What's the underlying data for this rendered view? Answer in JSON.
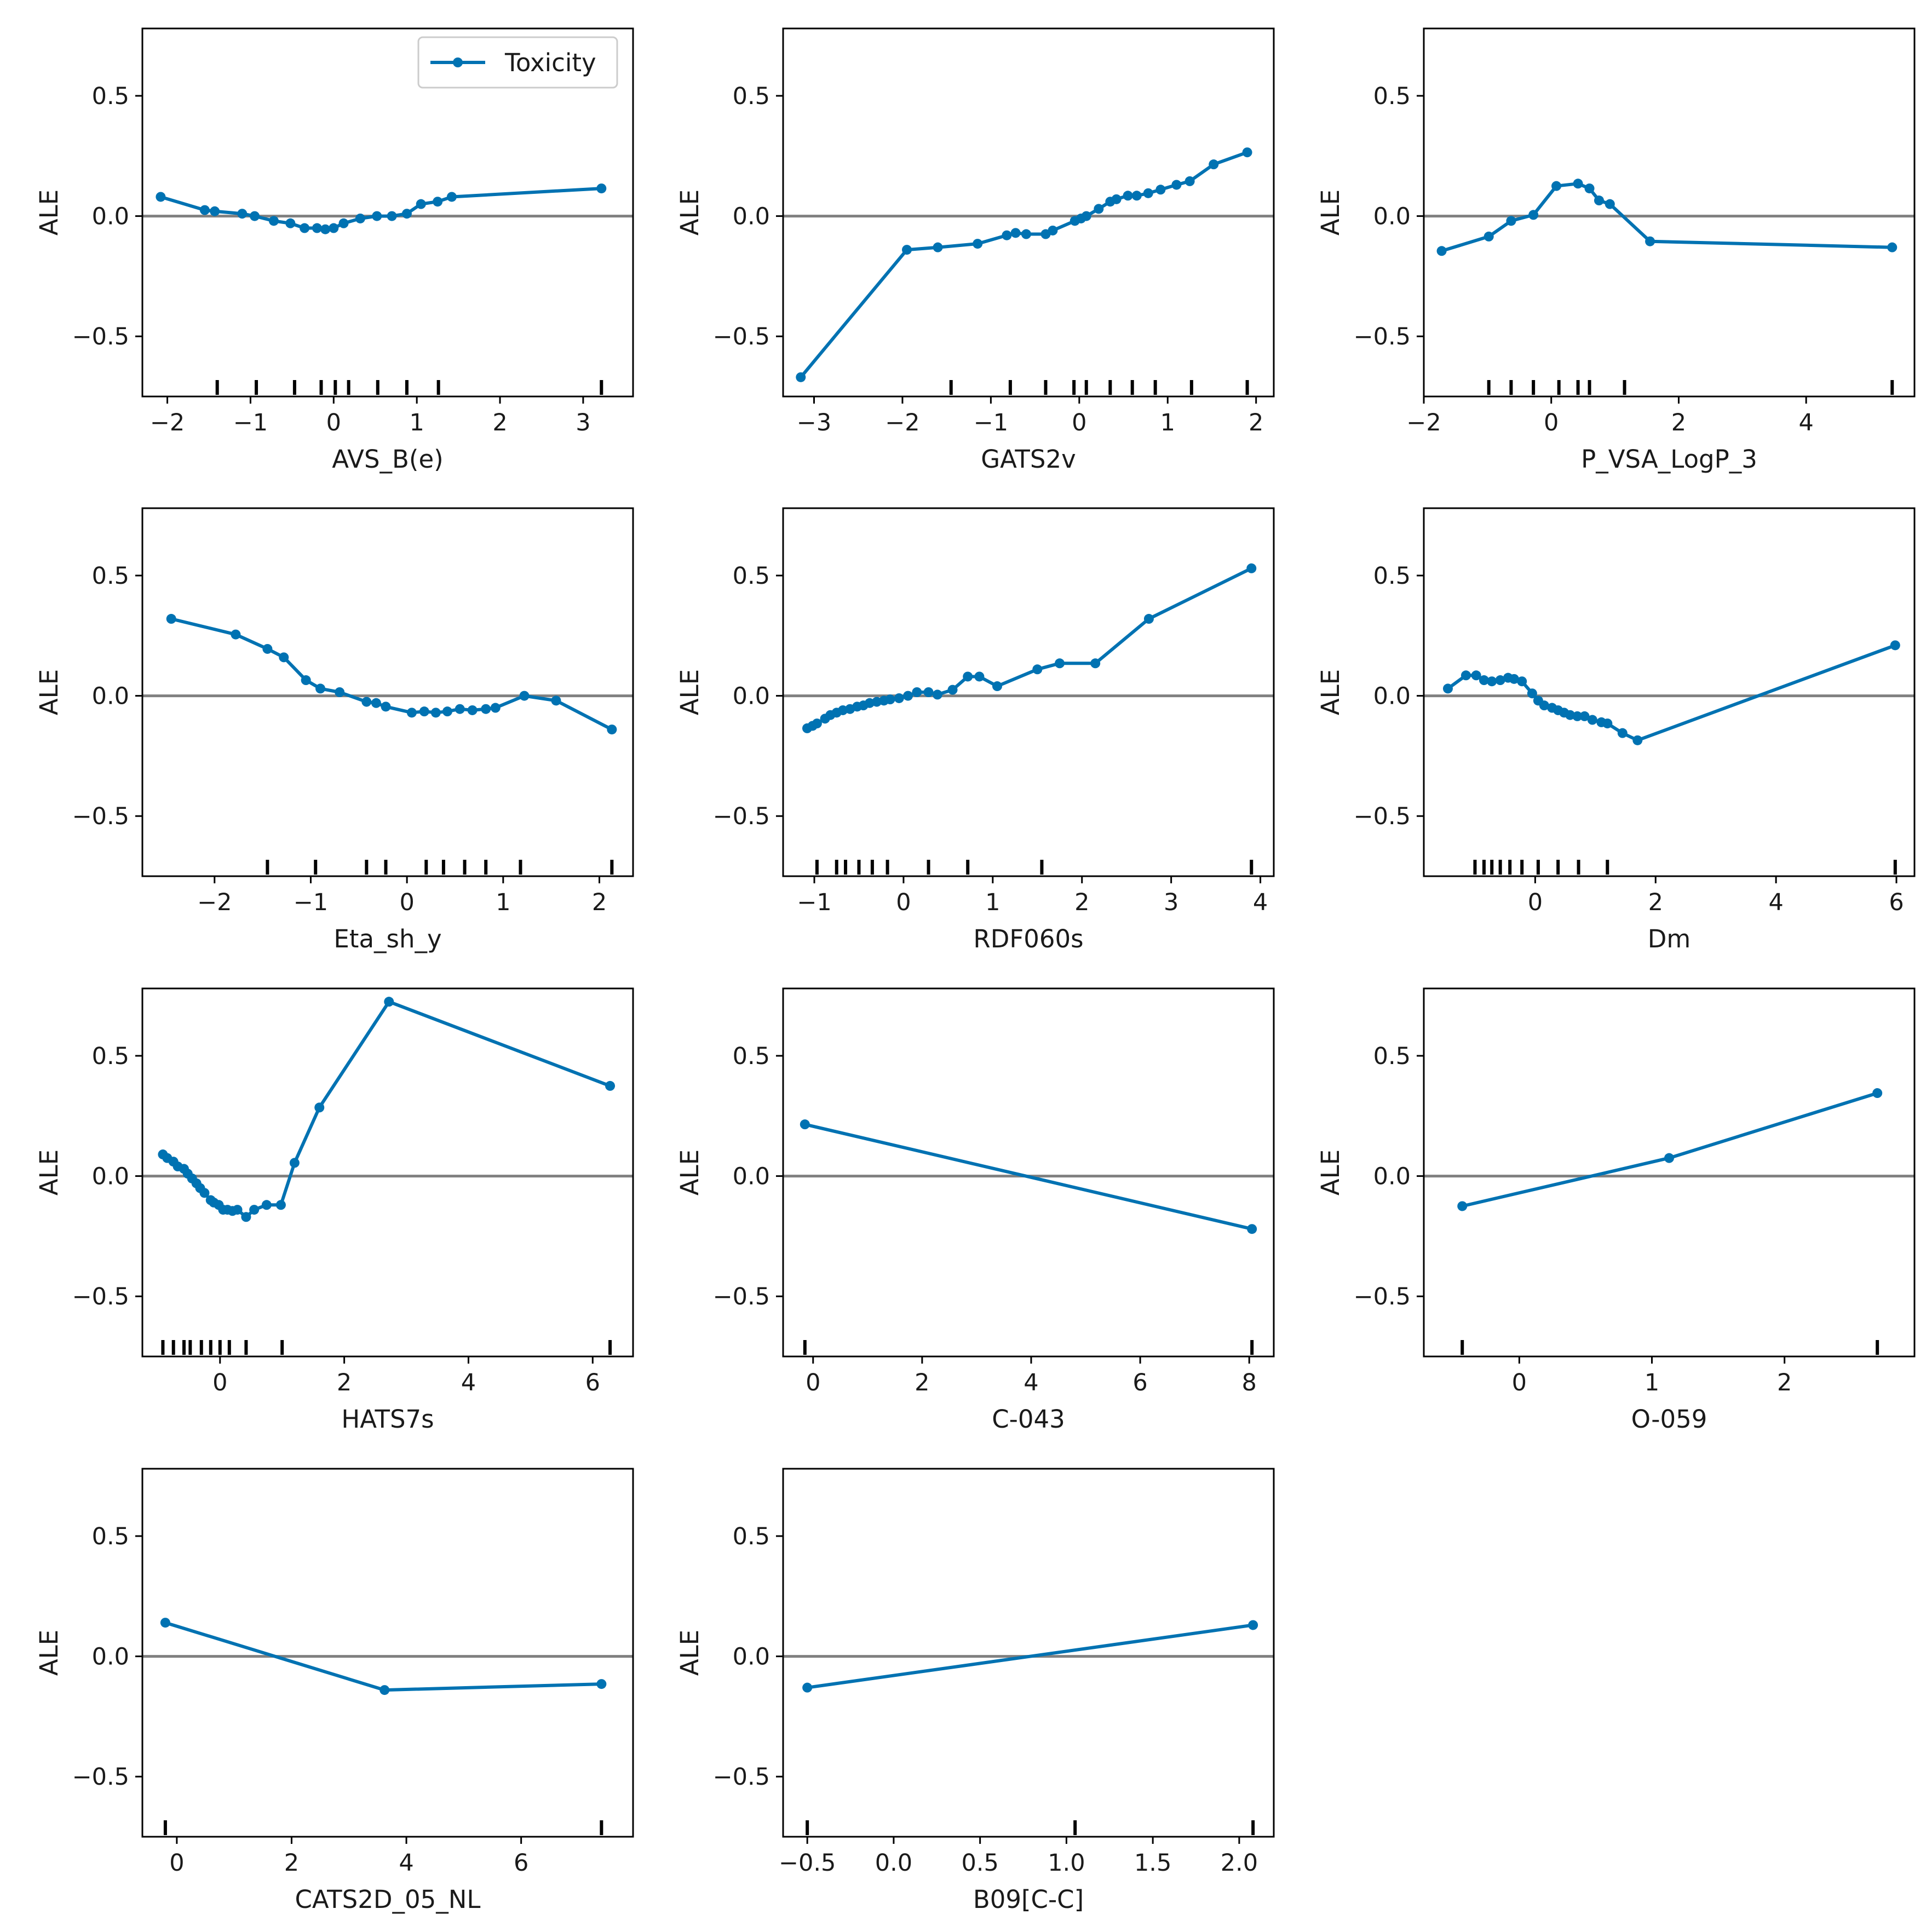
{
  "figure": {
    "ylabel": "ALE",
    "legend_label": "Toxicity",
    "series_color": "#0072b2",
    "zero_line_color": "#808080",
    "legend_position": "upper-right of first panel"
  },
  "chart_data": [
    {
      "type": "line",
      "title": "",
      "xlabel": "AVS_B(e)",
      "ylabel": "ALE",
      "xlim": [
        -2.3,
        3.6
      ],
      "ylim": [
        -0.75,
        0.78
      ],
      "xticks": [
        -2,
        -1,
        0,
        1,
        2,
        3
      ],
      "xtick_labels": [
        "−2",
        "−1",
        "0",
        "1",
        "2",
        "3"
      ],
      "yticks": [
        -0.5,
        0.0,
        0.5
      ],
      "ytick_labels": [
        "−0.5",
        "0.0",
        "0.5"
      ],
      "rug": [
        -1.4,
        -0.93,
        -0.47,
        -0.15,
        0.02,
        0.18,
        0.53,
        0.88,
        1.26,
        3.22
      ],
      "series": [
        {
          "name": "Toxicity",
          "x": [
            -2.08,
            -1.55,
            -1.43,
            -1.1,
            -0.95,
            -0.72,
            -0.52,
            -0.35,
            -0.2,
            -0.1,
            0.0,
            0.12,
            0.32,
            0.52,
            0.7,
            0.88,
            1.05,
            1.25,
            1.42,
            3.22
          ],
          "y": [
            0.08,
            0.025,
            0.02,
            0.01,
            0.0,
            -0.02,
            -0.03,
            -0.05,
            -0.05,
            -0.055,
            -0.05,
            -0.03,
            -0.01,
            0.0,
            0.0,
            0.01,
            0.05,
            0.06,
            0.08,
            0.115
          ]
        }
      ]
    },
    {
      "type": "line",
      "title": "",
      "xlabel": "GATS2v",
      "ylabel": "ALE",
      "xlim": [
        -3.35,
        2.2
      ],
      "ylim": [
        -0.75,
        0.78
      ],
      "xticks": [
        -3,
        -2,
        -1,
        0,
        1,
        2
      ],
      "xtick_labels": [
        "−3",
        "−2",
        "−1",
        "0",
        "1",
        "2"
      ],
      "yticks": [
        -0.5,
        0.0,
        0.5
      ],
      "ytick_labels": [
        "−0.5",
        "0.0",
        "0.5"
      ],
      "rug": [
        -1.45,
        -0.78,
        -0.38,
        -0.06,
        0.08,
        0.35,
        0.6,
        0.86,
        1.27,
        1.9
      ],
      "series": [
        {
          "name": "Toxicity",
          "x": [
            -3.15,
            -1.95,
            -1.6,
            -1.15,
            -0.82,
            -0.72,
            -0.6,
            -0.38,
            -0.3,
            -0.05,
            0.02,
            0.08,
            0.22,
            0.35,
            0.42,
            0.55,
            0.65,
            0.78,
            0.92,
            1.1,
            1.25,
            1.52,
            1.9
          ],
          "y": [
            -0.67,
            -0.14,
            -0.13,
            -0.115,
            -0.08,
            -0.07,
            -0.075,
            -0.075,
            -0.06,
            -0.02,
            -0.01,
            0.0,
            0.03,
            0.06,
            0.07,
            0.085,
            0.085,
            0.095,
            0.11,
            0.13,
            0.145,
            0.215,
            0.265
          ]
        }
      ]
    },
    {
      "type": "line",
      "title": "",
      "xlabel": "P_VSA_LogP_3",
      "ylabel": "ALE",
      "xlim": [
        -2.0,
        5.7
      ],
      "ylim": [
        -0.75,
        0.78
      ],
      "xticks": [
        -2,
        0,
        2,
        4
      ],
      "xtick_labels": [
        "−2",
        "0",
        "2",
        "4"
      ],
      "yticks": [
        -0.5,
        0.0,
        0.5
      ],
      "ytick_labels": [
        "−0.5",
        "0.0",
        "0.5"
      ],
      "rug": [
        -0.98,
        -0.63,
        -0.28,
        0.12,
        0.42,
        0.6,
        1.15,
        5.35
      ],
      "series": [
        {
          "name": "Toxicity",
          "x": [
            -1.72,
            -0.98,
            -0.63,
            -0.28,
            0.08,
            0.42,
            0.6,
            0.75,
            0.92,
            1.55,
            5.35
          ],
          "y": [
            -0.145,
            -0.085,
            -0.02,
            0.005,
            0.125,
            0.135,
            0.115,
            0.065,
            0.05,
            -0.105,
            -0.13
          ]
        }
      ]
    },
    {
      "type": "line",
      "title": "",
      "xlabel": "Eta_sh_y",
      "ylabel": "ALE",
      "xlim": [
        -2.75,
        2.35
      ],
      "ylim": [
        -0.75,
        0.78
      ],
      "xticks": [
        -2,
        -1,
        0,
        1,
        2
      ],
      "xtick_labels": [
        "−2",
        "−1",
        "0",
        "1",
        "2"
      ],
      "yticks": [
        -0.5,
        0.0,
        0.5
      ],
      "ytick_labels": [
        "−0.5",
        "0.0",
        "0.5"
      ],
      "rug": [
        -1.45,
        -0.95,
        -0.42,
        -0.22,
        0.2,
        0.38,
        0.6,
        0.82,
        1.18,
        2.13
      ],
      "series": [
        {
          "name": "Toxicity",
          "x": [
            -2.45,
            -1.78,
            -1.45,
            -1.28,
            -1.05,
            -0.9,
            -0.7,
            -0.42,
            -0.32,
            -0.22,
            0.05,
            0.18,
            0.3,
            0.42,
            0.55,
            0.68,
            0.82,
            0.92,
            1.22,
            1.55,
            2.13
          ],
          "y": [
            0.32,
            0.255,
            0.195,
            0.16,
            0.065,
            0.03,
            0.015,
            -0.025,
            -0.03,
            -0.045,
            -0.07,
            -0.065,
            -0.07,
            -0.065,
            -0.055,
            -0.06,
            -0.055,
            -0.05,
            0.0,
            -0.02,
            -0.14
          ]
        }
      ]
    },
    {
      "type": "line",
      "title": "",
      "xlabel": "RDF060s",
      "ylabel": "ALE",
      "xlim": [
        -1.35,
        4.15
      ],
      "ylim": [
        -0.75,
        0.78
      ],
      "xticks": [
        -1,
        0,
        1,
        2,
        3,
        4
      ],
      "xtick_labels": [
        "−1",
        "0",
        "1",
        "2",
        "3",
        "4"
      ],
      "yticks": [
        -0.5,
        0.0,
        0.5
      ],
      "ytick_labels": [
        "−0.5",
        "0.0",
        "0.5"
      ],
      "rug": [
        -0.97,
        -0.75,
        -0.65,
        -0.5,
        -0.35,
        -0.18,
        0.28,
        0.72,
        1.55,
        3.9
      ],
      "series": [
        {
          "name": "Toxicity",
          "x": [
            -1.08,
            -1.02,
            -0.97,
            -0.88,
            -0.82,
            -0.75,
            -0.68,
            -0.6,
            -0.52,
            -0.45,
            -0.38,
            -0.3,
            -0.22,
            -0.15,
            -0.05,
            0.05,
            0.15,
            0.28,
            0.38,
            0.55,
            0.72,
            0.85,
            1.05,
            1.5,
            1.75,
            2.15,
            2.75,
            3.9
          ],
          "y": [
            -0.135,
            -0.125,
            -0.115,
            -0.095,
            -0.08,
            -0.07,
            -0.06,
            -0.055,
            -0.045,
            -0.04,
            -0.03,
            -0.025,
            -0.02,
            -0.015,
            -0.01,
            0.0,
            0.015,
            0.015,
            0.005,
            0.025,
            0.08,
            0.08,
            0.04,
            0.11,
            0.135,
            0.135,
            0.32,
            0.53
          ]
        }
      ]
    },
    {
      "type": "line",
      "title": "",
      "xlabel": "Dm",
      "ylabel": "ALE",
      "xlim": [
        -1.85,
        6.3
      ],
      "ylim": [
        -0.75,
        0.78
      ],
      "xticks": [
        0,
        2,
        4,
        6
      ],
      "xtick_labels": [
        "0",
        "2",
        "4",
        "6"
      ],
      "yticks": [
        -0.5,
        0.0,
        0.5
      ],
      "ytick_labels": [
        "−0.5",
        "0.0",
        "0.5"
      ],
      "rug": [
        -1.0,
        -0.85,
        -0.72,
        -0.58,
        -0.42,
        -0.22,
        0.05,
        0.38,
        0.72,
        1.2,
        5.98
      ],
      "series": [
        {
          "name": "Toxicity",
          "x": [
            -1.45,
            -1.15,
            -0.98,
            -0.85,
            -0.72,
            -0.58,
            -0.45,
            -0.35,
            -0.22,
            -0.05,
            0.05,
            0.15,
            0.28,
            0.38,
            0.48,
            0.58,
            0.7,
            0.82,
            0.95,
            1.1,
            1.2,
            1.45,
            1.7,
            5.98
          ],
          "y": [
            0.03,
            0.085,
            0.085,
            0.065,
            0.06,
            0.065,
            0.075,
            0.07,
            0.06,
            0.01,
            -0.02,
            -0.04,
            -0.05,
            -0.06,
            -0.07,
            -0.08,
            -0.085,
            -0.085,
            -0.1,
            -0.11,
            -0.115,
            -0.155,
            -0.185,
            0.21
          ]
        }
      ]
    },
    {
      "type": "line",
      "title": "",
      "xlabel": "HATS7s",
      "ylabel": "ALE",
      "xlim": [
        -1.25,
        6.65
      ],
      "ylim": [
        -0.75,
        0.78
      ],
      "xticks": [
        0,
        2,
        4,
        6
      ],
      "xtick_labels": [
        "0",
        "2",
        "4",
        "6"
      ],
      "yticks": [
        -0.5,
        0.0,
        0.5
      ],
      "ytick_labels": [
        "−0.5",
        "0.0",
        "0.5"
      ],
      "rug": [
        -0.92,
        -0.75,
        -0.58,
        -0.48,
        -0.3,
        -0.15,
        0.0,
        0.15,
        0.42,
        1.0,
        6.28
      ],
      "series": [
        {
          "name": "Toxicity",
          "x": [
            -0.92,
            -0.85,
            -0.75,
            -0.68,
            -0.58,
            -0.52,
            -0.45,
            -0.38,
            -0.32,
            -0.25,
            -0.15,
            -0.1,
            -0.02,
            0.05,
            0.12,
            0.2,
            0.28,
            0.42,
            0.55,
            0.75,
            0.98,
            1.2,
            1.6,
            2.72,
            6.28
          ],
          "y": [
            0.09,
            0.075,
            0.06,
            0.04,
            0.03,
            0.01,
            -0.01,
            -0.03,
            -0.05,
            -0.07,
            -0.1,
            -0.11,
            -0.12,
            -0.14,
            -0.14,
            -0.145,
            -0.14,
            -0.17,
            -0.14,
            -0.12,
            -0.12,
            0.055,
            0.285,
            0.725,
            0.375
          ]
        }
      ]
    },
    {
      "type": "line",
      "title": "",
      "xlabel": "C-043",
      "ylabel": "ALE",
      "xlim": [
        -0.55,
        8.45
      ],
      "ylim": [
        -0.75,
        0.78
      ],
      "xticks": [
        0,
        2,
        4,
        6,
        8
      ],
      "xtick_labels": [
        "0",
        "2",
        "4",
        "6",
        "8"
      ],
      "yticks": [
        -0.5,
        0.0,
        0.5
      ],
      "ytick_labels": [
        "−0.5",
        "0.0",
        "0.5"
      ],
      "rug": [
        -0.15,
        8.05
      ],
      "series": [
        {
          "name": "Toxicity",
          "x": [
            -0.15,
            8.05
          ],
          "y": [
            0.215,
            -0.22
          ]
        }
      ]
    },
    {
      "type": "line",
      "title": "",
      "xlabel": "O-059",
      "ylabel": "ALE",
      "xlim": [
        -0.72,
        2.98
      ],
      "ylim": [
        -0.75,
        0.78
      ],
      "xticks": [
        0,
        1,
        2
      ],
      "xtick_labels": [
        "0",
        "1",
        "2"
      ],
      "yticks": [
        -0.5,
        0.0,
        0.5
      ],
      "ytick_labels": [
        "−0.5",
        "0.0",
        "0.5"
      ],
      "rug": [
        -0.43,
        2.7
      ],
      "series": [
        {
          "name": "Toxicity",
          "x": [
            -0.43,
            1.13,
            2.7
          ],
          "y": [
            -0.125,
            0.075,
            0.345
          ]
        }
      ]
    },
    {
      "type": "line",
      "title": "",
      "xlabel": "CATS2D_05_NL",
      "ylabel": "ALE",
      "xlim": [
        -0.6,
        7.95
      ],
      "ylim": [
        -0.75,
        0.78
      ],
      "xticks": [
        0,
        2,
        4,
        6
      ],
      "xtick_labels": [
        "0",
        "2",
        "4",
        "6"
      ],
      "yticks": [
        -0.5,
        0.0,
        0.5
      ],
      "ytick_labels": [
        "−0.5",
        "0.0",
        "0.5"
      ],
      "rug": [
        -0.2,
        7.4
      ],
      "series": [
        {
          "name": "Toxicity",
          "x": [
            -0.2,
            3.62,
            7.4
          ],
          "y": [
            0.14,
            -0.14,
            -0.115
          ]
        }
      ]
    },
    {
      "type": "line",
      "title": "",
      "xlabel": "B09[C-C]",
      "ylabel": "ALE",
      "xlim": [
        -0.64,
        2.2
      ],
      "ylim": [
        -0.75,
        0.78
      ],
      "xticks": [
        -0.5,
        0.0,
        0.5,
        1.0,
        1.5,
        2.0
      ],
      "xtick_labels": [
        "−0.5",
        "0.0",
        "0.5",
        "1.0",
        "1.5",
        "2.0"
      ],
      "yticks": [
        -0.5,
        0.0,
        0.5
      ],
      "ytick_labels": [
        "−0.5",
        "0.0",
        "0.5"
      ],
      "rug": [
        -0.5,
        1.05,
        2.08
      ],
      "series": [
        {
          "name": "Toxicity",
          "x": [
            -0.5,
            2.08
          ],
          "y": [
            -0.13,
            0.13
          ]
        }
      ]
    }
  ]
}
